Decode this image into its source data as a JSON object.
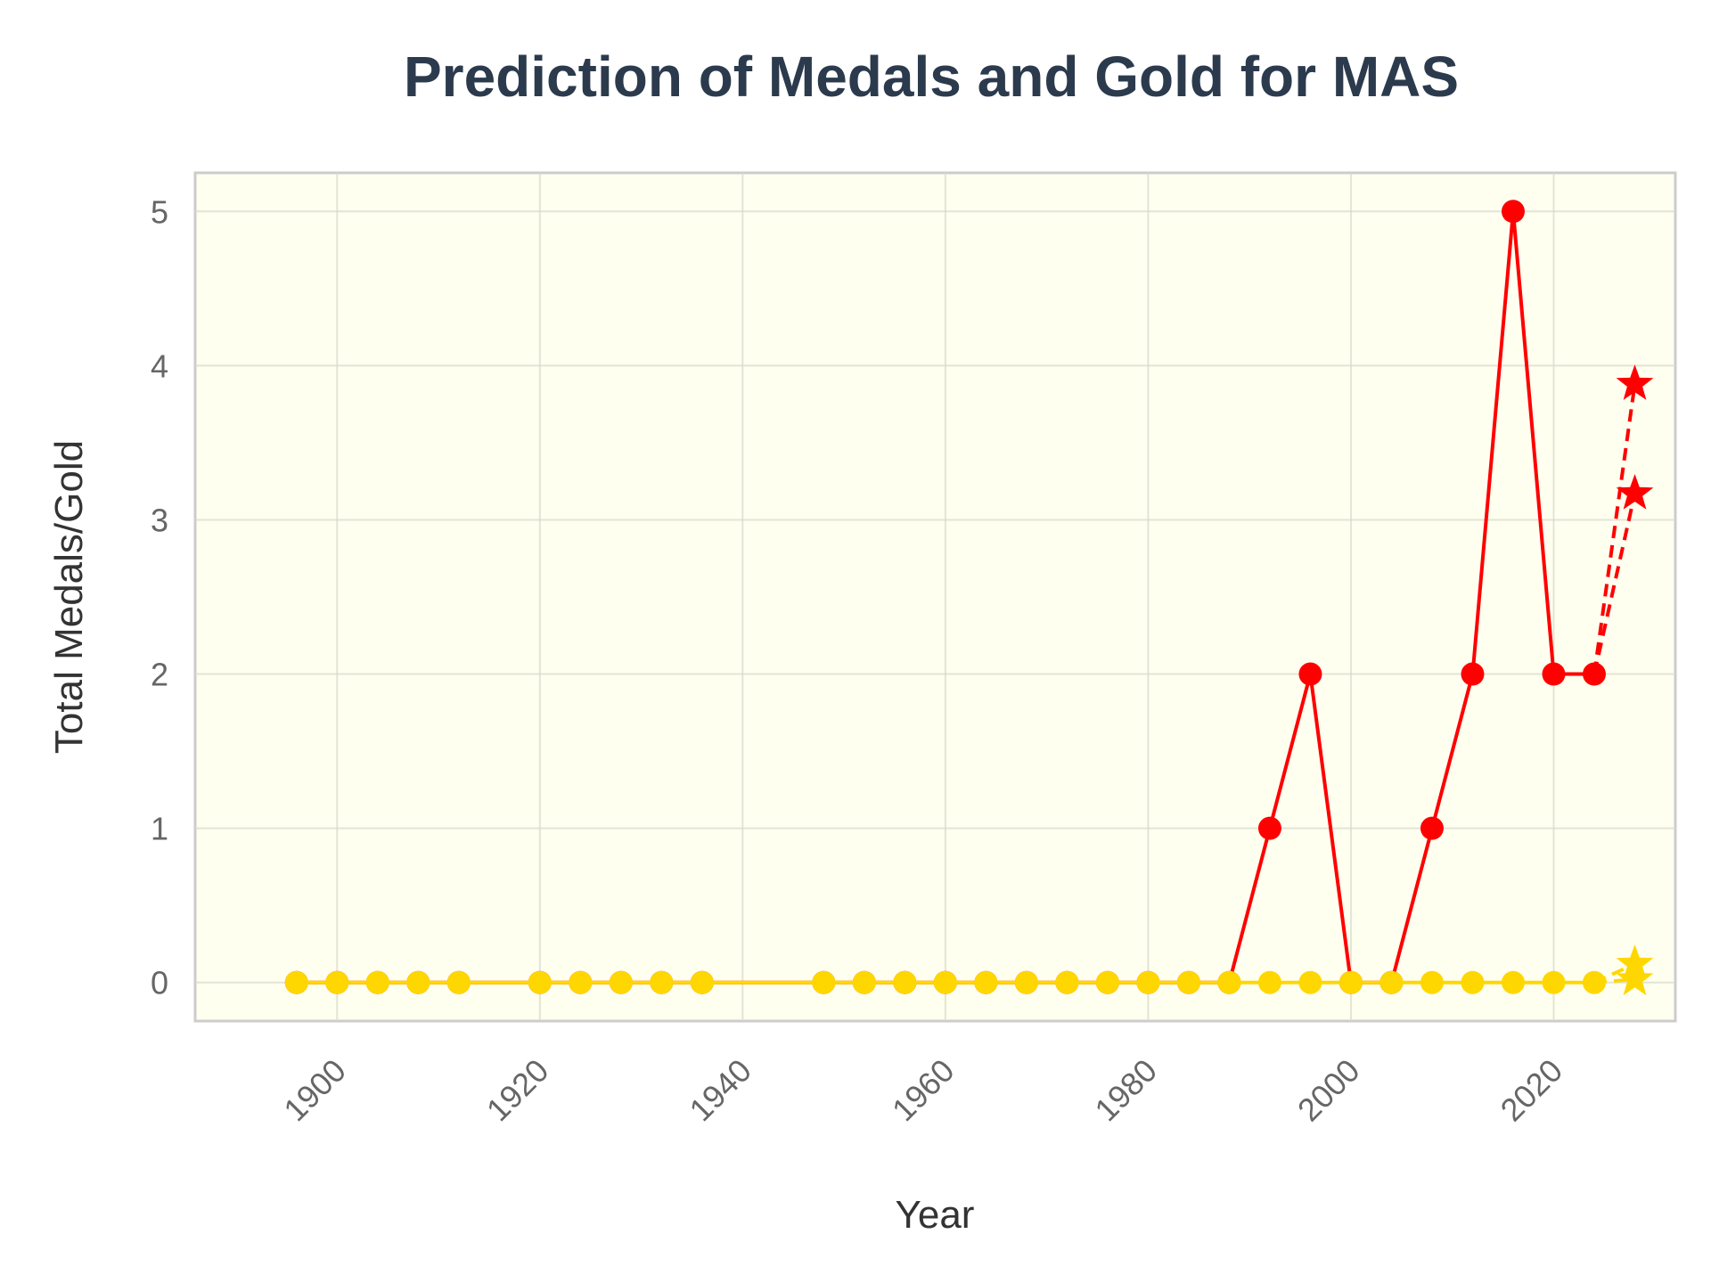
{
  "chart_data": {
    "type": "line",
    "title": "Prediction of Medals and Gold for MAS",
    "xlabel": "Year",
    "ylabel": "Total Medals/Gold",
    "xlim": [
      1886,
      2032
    ],
    "ylim": [
      -0.25,
      5.25
    ],
    "xticks": [
      1900,
      1920,
      1940,
      1960,
      1980,
      2000,
      2020
    ],
    "yticks": [
      0,
      1,
      2,
      3,
      4,
      5
    ],
    "grid": true,
    "background_color": "#fffff0",
    "series": [
      {
        "color": "#ff0000",
        "style": "solid",
        "marker": "circle",
        "x": [
          1896,
          1900,
          1904,
          1908,
          1912,
          1920,
          1924,
          1928,
          1932,
          1936,
          1948,
          1952,
          1956,
          1960,
          1964,
          1968,
          1972,
          1976,
          1980,
          1984,
          1988,
          1992,
          1996,
          2000,
          2004,
          2008,
          2012,
          2016,
          2020,
          2024
        ],
        "y": [
          0,
          0,
          0,
          0,
          0,
          0,
          0,
          0,
          0,
          0,
          0,
          0,
          0,
          0,
          0,
          0,
          0,
          0,
          0,
          0,
          0,
          1,
          2,
          0,
          0,
          1,
          2,
          5,
          2,
          2
        ]
      },
      {
        "color": "#ffd700",
        "style": "solid",
        "marker": "circle",
        "x": [
          1896,
          1900,
          1904,
          1908,
          1912,
          1920,
          1924,
          1928,
          1932,
          1936,
          1948,
          1952,
          1956,
          1960,
          1964,
          1968,
          1972,
          1976,
          1980,
          1984,
          1988,
          1992,
          1996,
          2000,
          2004,
          2008,
          2012,
          2016,
          2020,
          2024
        ],
        "y": [
          0,
          0,
          0,
          0,
          0,
          0,
          0,
          0,
          0,
          0,
          0,
          0,
          0,
          0,
          0,
          0,
          0,
          0,
          0,
          0,
          0,
          0,
          0,
          0,
          0,
          0,
          0,
          0,
          0,
          0
        ]
      },
      {
        "color": "#ff0000",
        "style": "dashed",
        "marker": "star",
        "x": [
          2024,
          2028
        ],
        "y": [
          2,
          3.88
        ]
      },
      {
        "color": "#ff0000",
        "style": "dashed",
        "marker": "star",
        "x": [
          2024,
          2028
        ],
        "y": [
          2,
          3.17
        ]
      },
      {
        "color": "#ffd700",
        "style": "dashed",
        "marker": "star",
        "x": [
          2024,
          2028
        ],
        "y": [
          0,
          0.12
        ]
      },
      {
        "color": "#ffd700",
        "style": "dashed",
        "marker": "star",
        "x": [
          2024,
          2028
        ],
        "y": [
          0,
          0.02
        ]
      }
    ]
  }
}
